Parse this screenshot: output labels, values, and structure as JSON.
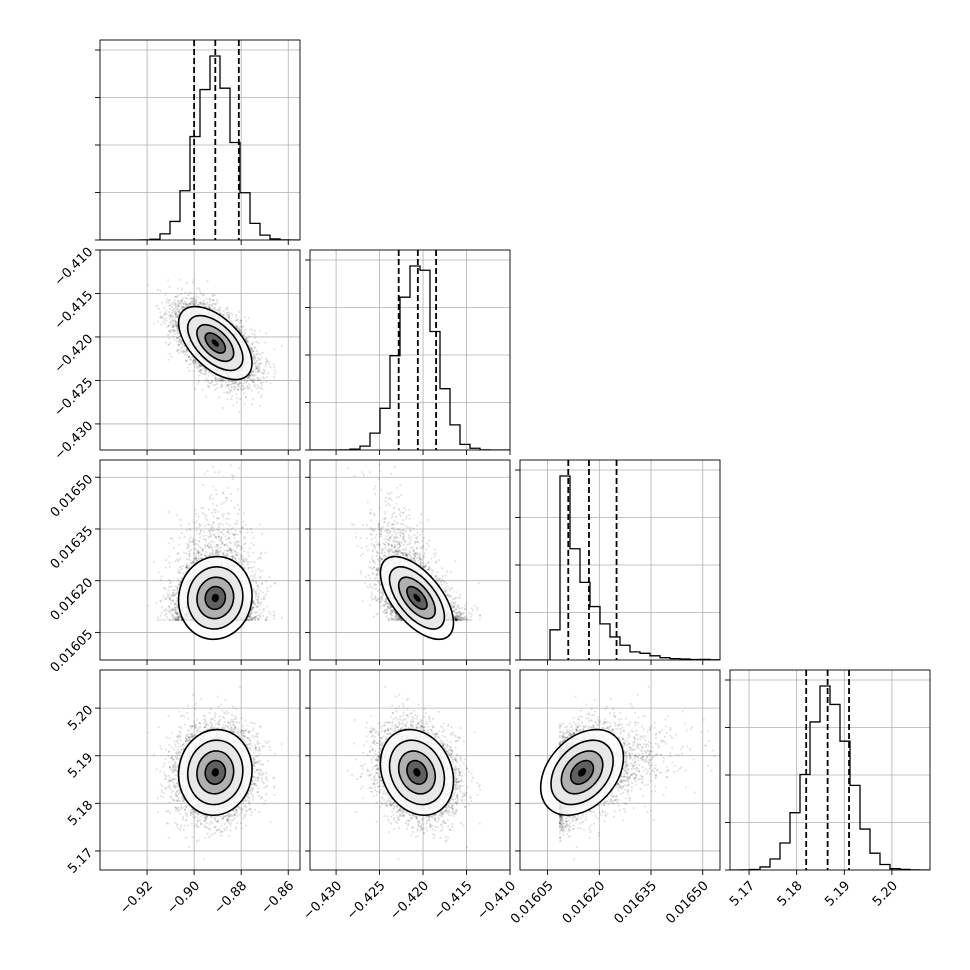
{
  "chart_data": {
    "type": "corner",
    "grid": true,
    "parameters": [
      {
        "range": [
          -0.94,
          -0.855
        ],
        "ticks": [
          -0.92,
          -0.9,
          -0.88,
          -0.86
        ],
        "tick_labels": [
          "−0.92",
          "−0.90",
          "−0.88",
          "−0.86"
        ],
        "quantiles": [
          -0.9,
          -0.891,
          -0.881
        ],
        "mean": -0.891,
        "sd": 0.0078
      },
      {
        "range": [
          -0.433,
          -0.41
        ],
        "ticks": [
          -0.43,
          -0.425,
          -0.42,
          -0.415,
          -0.41
        ],
        "tick_labels": [
          "−0.430",
          "−0.425",
          "−0.420",
          "−0.415",
          "−0.410"
        ],
        "quantiles": [
          -0.4228,
          -0.4206,
          -0.4185
        ],
        "mean": -0.4207,
        "sd": 0.0021
      },
      {
        "range": [
          0.01597,
          0.01655
        ],
        "ticks": [
          0.01605,
          0.0162,
          0.01635,
          0.0165
        ],
        "tick_labels": [
          "0.01605",
          "0.01620",
          "0.01635",
          "0.01650"
        ],
        "quantiles": [
          0.01611,
          0.01617,
          0.01625
        ],
        "mean": 0.01615,
        "sd": 6e-05,
        "skew": 1.2
      },
      {
        "range": [
          5.166,
          5.208
        ],
        "ticks": [
          5.17,
          5.18,
          5.19,
          5.2
        ],
        "tick_labels": [
          "5.17",
          "5.18",
          "5.19",
          "5.20"
        ],
        "quantiles": [
          5.182,
          5.1865,
          5.191
        ],
        "mean": 5.1865,
        "sd": 0.0045
      }
    ],
    "correlations": {
      "1-0": -0.55,
      "2-0": 0.05,
      "2-1": -0.6,
      "3-0": 0.05,
      "3-1": -0.2,
      "3-2": 0.35
    },
    "colors": {
      "line": "#000000",
      "grid": "#b0b0b0",
      "points": "#000000"
    }
  }
}
